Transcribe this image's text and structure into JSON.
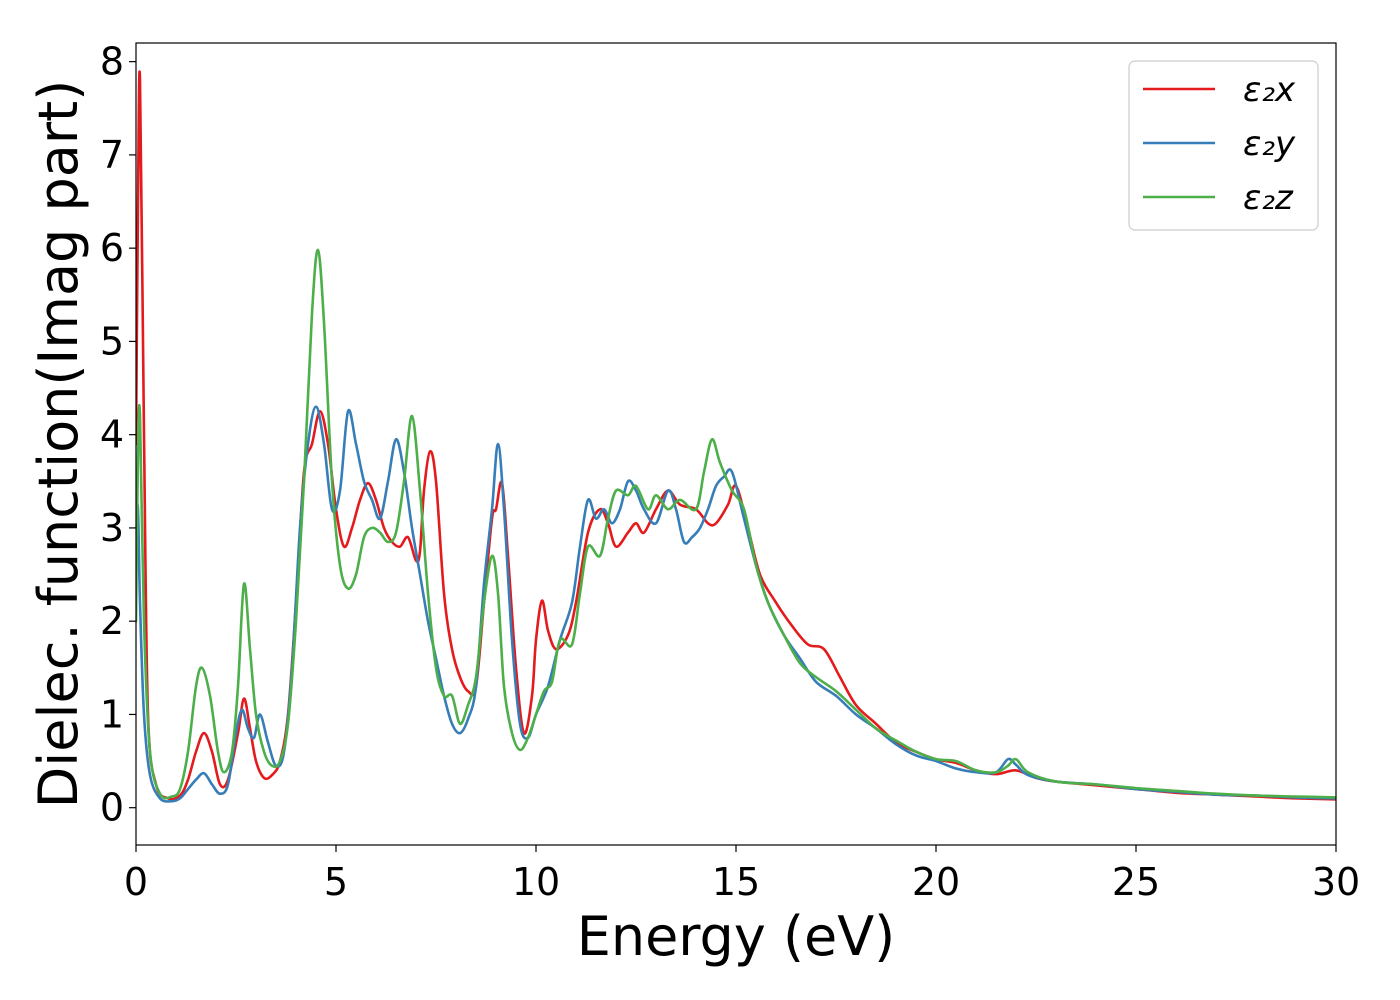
{
  "chart_data": {
    "type": "line",
    "xlabel": "Energy (eV)",
    "ylabel": "Dielec. function(Imag part)",
    "xlim": [
      0,
      30
    ],
    "ylim": [
      -0.4,
      8.2
    ],
    "xticks": [
      0,
      5,
      10,
      15,
      20,
      25,
      30
    ],
    "yticks": [
      0,
      1,
      2,
      3,
      4,
      5,
      6,
      7,
      8
    ],
    "grid": false,
    "legend_position": "top-right",
    "series": [
      {
        "name": "ε₂x",
        "color": "#e41a1c",
        "points": [
          [
            0.0,
            3.9
          ],
          [
            0.05,
            6.5
          ],
          [
            0.1,
            7.8
          ],
          [
            0.2,
            4.0
          ],
          [
            0.3,
            1.0
          ],
          [
            0.5,
            0.25
          ],
          [
            0.8,
            0.1
          ],
          [
            1.1,
            0.13
          ],
          [
            1.3,
            0.3
          ],
          [
            1.5,
            0.6
          ],
          [
            1.7,
            0.8
          ],
          [
            1.9,
            0.6
          ],
          [
            2.1,
            0.25
          ],
          [
            2.3,
            0.3
          ],
          [
            2.55,
            0.8
          ],
          [
            2.7,
            1.17
          ],
          [
            2.85,
            0.85
          ],
          [
            3.0,
            0.5
          ],
          [
            3.2,
            0.32
          ],
          [
            3.4,
            0.35
          ],
          [
            3.6,
            0.5
          ],
          [
            3.8,
            1.0
          ],
          [
            4.0,
            2.2
          ],
          [
            4.2,
            3.6
          ],
          [
            4.4,
            3.9
          ],
          [
            4.6,
            4.25
          ],
          [
            4.8,
            3.9
          ],
          [
            5.0,
            3.2
          ],
          [
            5.2,
            2.8
          ],
          [
            5.4,
            3.0
          ],
          [
            5.6,
            3.3
          ],
          [
            5.8,
            3.48
          ],
          [
            6.0,
            3.3
          ],
          [
            6.2,
            3.0
          ],
          [
            6.4,
            2.85
          ],
          [
            6.6,
            2.8
          ],
          [
            6.8,
            2.9
          ],
          [
            7.0,
            2.65
          ],
          [
            7.1,
            2.75
          ],
          [
            7.2,
            3.4
          ],
          [
            7.35,
            3.82
          ],
          [
            7.5,
            3.5
          ],
          [
            7.7,
            2.3
          ],
          [
            7.9,
            1.7
          ],
          [
            8.1,
            1.4
          ],
          [
            8.3,
            1.25
          ],
          [
            8.5,
            1.3
          ],
          [
            8.7,
            2.2
          ],
          [
            8.9,
            3.1
          ],
          [
            9.0,
            3.2
          ],
          [
            9.15,
            3.48
          ],
          [
            9.3,
            2.7
          ],
          [
            9.5,
            1.5
          ],
          [
            9.7,
            0.8
          ],
          [
            9.9,
            1.2
          ],
          [
            10.0,
            1.8
          ],
          [
            10.15,
            2.22
          ],
          [
            10.3,
            1.9
          ],
          [
            10.5,
            1.7
          ],
          [
            10.8,
            1.85
          ],
          [
            11.0,
            2.2
          ],
          [
            11.3,
            2.95
          ],
          [
            11.6,
            3.2
          ],
          [
            11.8,
            3.05
          ],
          [
            12.0,
            2.8
          ],
          [
            12.3,
            2.95
          ],
          [
            12.5,
            3.05
          ],
          [
            12.7,
            2.95
          ],
          [
            13.0,
            3.2
          ],
          [
            13.3,
            3.4
          ],
          [
            13.6,
            3.25
          ],
          [
            14.0,
            3.2
          ],
          [
            14.3,
            3.05
          ],
          [
            14.5,
            3.05
          ],
          [
            14.8,
            3.25
          ],
          [
            15.0,
            3.45
          ],
          [
            15.3,
            3.0
          ],
          [
            15.6,
            2.5
          ],
          [
            16.0,
            2.2
          ],
          [
            16.4,
            1.95
          ],
          [
            16.8,
            1.75
          ],
          [
            17.2,
            1.7
          ],
          [
            17.6,
            1.4
          ],
          [
            18.0,
            1.1
          ],
          [
            18.5,
            0.9
          ],
          [
            19.0,
            0.7
          ],
          [
            19.5,
            0.6
          ],
          [
            20.0,
            0.52
          ],
          [
            20.5,
            0.48
          ],
          [
            21.0,
            0.4
          ],
          [
            21.5,
            0.36
          ],
          [
            22.0,
            0.4
          ],
          [
            22.5,
            0.32
          ],
          [
            23.0,
            0.28
          ],
          [
            24.0,
            0.24
          ],
          [
            25.0,
            0.2
          ],
          [
            26.0,
            0.16
          ],
          [
            27.0,
            0.14
          ],
          [
            28.0,
            0.12
          ],
          [
            29.0,
            0.1
          ],
          [
            30.0,
            0.09
          ]
        ]
      },
      {
        "name": "ε₂y",
        "color": "#377eb8",
        "points": [
          [
            0.0,
            3.1
          ],
          [
            0.05,
            3.2
          ],
          [
            0.1,
            2.2
          ],
          [
            0.2,
            1.0
          ],
          [
            0.35,
            0.35
          ],
          [
            0.6,
            0.1
          ],
          [
            0.9,
            0.07
          ],
          [
            1.1,
            0.1
          ],
          [
            1.3,
            0.2
          ],
          [
            1.5,
            0.3
          ],
          [
            1.7,
            0.37
          ],
          [
            1.9,
            0.25
          ],
          [
            2.1,
            0.15
          ],
          [
            2.3,
            0.25
          ],
          [
            2.5,
            0.8
          ],
          [
            2.65,
            1.05
          ],
          [
            2.8,
            0.85
          ],
          [
            2.95,
            0.75
          ],
          [
            3.1,
            1.0
          ],
          [
            3.3,
            0.7
          ],
          [
            3.5,
            0.45
          ],
          [
            3.7,
            0.6
          ],
          [
            3.9,
            1.5
          ],
          [
            4.1,
            3.0
          ],
          [
            4.3,
            3.9
          ],
          [
            4.5,
            4.3
          ],
          [
            4.7,
            3.9
          ],
          [
            4.9,
            3.2
          ],
          [
            5.1,
            3.4
          ],
          [
            5.3,
            4.25
          ],
          [
            5.5,
            3.9
          ],
          [
            5.7,
            3.5
          ],
          [
            5.9,
            3.3
          ],
          [
            6.1,
            3.1
          ],
          [
            6.3,
            3.5
          ],
          [
            6.5,
            3.95
          ],
          [
            6.7,
            3.6
          ],
          [
            6.9,
            3.0
          ],
          [
            7.1,
            2.5
          ],
          [
            7.3,
            2.0
          ],
          [
            7.5,
            1.6
          ],
          [
            7.7,
            1.2
          ],
          [
            7.9,
            0.9
          ],
          [
            8.1,
            0.8
          ],
          [
            8.3,
            0.95
          ],
          [
            8.5,
            1.3
          ],
          [
            8.7,
            2.4
          ],
          [
            8.9,
            3.2
          ],
          [
            9.05,
            3.9
          ],
          [
            9.2,
            3.2
          ],
          [
            9.4,
            1.8
          ],
          [
            9.6,
            0.9
          ],
          [
            9.8,
            0.75
          ],
          [
            10.0,
            1.0
          ],
          [
            10.3,
            1.3
          ],
          [
            10.6,
            1.8
          ],
          [
            10.9,
            2.2
          ],
          [
            11.1,
            2.8
          ],
          [
            11.3,
            3.3
          ],
          [
            11.5,
            3.1
          ],
          [
            11.7,
            3.2
          ],
          [
            11.9,
            3.05
          ],
          [
            12.1,
            3.2
          ],
          [
            12.3,
            3.5
          ],
          [
            12.5,
            3.4
          ],
          [
            12.7,
            3.2
          ],
          [
            13.0,
            3.05
          ],
          [
            13.3,
            3.4
          ],
          [
            13.5,
            3.2
          ],
          [
            13.7,
            2.85
          ],
          [
            13.9,
            2.9
          ],
          [
            14.1,
            3.0
          ],
          [
            14.3,
            3.2
          ],
          [
            14.5,
            3.45
          ],
          [
            14.7,
            3.55
          ],
          [
            14.9,
            3.6
          ],
          [
            15.2,
            3.1
          ],
          [
            15.5,
            2.6
          ],
          [
            15.8,
            2.2
          ],
          [
            16.2,
            1.85
          ],
          [
            16.6,
            1.6
          ],
          [
            17.0,
            1.35
          ],
          [
            17.5,
            1.2
          ],
          [
            18.0,
            1.0
          ],
          [
            18.5,
            0.85
          ],
          [
            19.0,
            0.68
          ],
          [
            19.5,
            0.56
          ],
          [
            20.0,
            0.5
          ],
          [
            20.5,
            0.42
          ],
          [
            21.0,
            0.38
          ],
          [
            21.5,
            0.38
          ],
          [
            21.8,
            0.52
          ],
          [
            22.0,
            0.46
          ],
          [
            22.3,
            0.35
          ],
          [
            23.0,
            0.28
          ],
          [
            24.0,
            0.25
          ],
          [
            25.0,
            0.2
          ],
          [
            26.0,
            0.17
          ],
          [
            27.0,
            0.14
          ],
          [
            28.0,
            0.13
          ],
          [
            29.0,
            0.11
          ],
          [
            30.0,
            0.1
          ]
        ]
      },
      {
        "name": "ε₂z",
        "color": "#4daf4a",
        "points": [
          [
            0.0,
            2.0
          ],
          [
            0.05,
            3.8
          ],
          [
            0.1,
            4.2
          ],
          [
            0.2,
            2.0
          ],
          [
            0.35,
            0.6
          ],
          [
            0.6,
            0.15
          ],
          [
            0.9,
            0.12
          ],
          [
            1.1,
            0.2
          ],
          [
            1.3,
            0.6
          ],
          [
            1.5,
            1.3
          ],
          [
            1.65,
            1.5
          ],
          [
            1.85,
            1.2
          ],
          [
            2.05,
            0.6
          ],
          [
            2.2,
            0.38
          ],
          [
            2.4,
            0.6
          ],
          [
            2.55,
            1.3
          ],
          [
            2.7,
            2.4
          ],
          [
            2.85,
            1.7
          ],
          [
            3.0,
            1.0
          ],
          [
            3.2,
            0.6
          ],
          [
            3.4,
            0.45
          ],
          [
            3.6,
            0.5
          ],
          [
            3.8,
            0.9
          ],
          [
            4.0,
            2.0
          ],
          [
            4.2,
            3.5
          ],
          [
            4.4,
            5.3
          ],
          [
            4.55,
            5.98
          ],
          [
            4.7,
            5.2
          ],
          [
            4.9,
            3.5
          ],
          [
            5.1,
            2.6
          ],
          [
            5.3,
            2.35
          ],
          [
            5.5,
            2.5
          ],
          [
            5.7,
            2.9
          ],
          [
            5.9,
            3.0
          ],
          [
            6.1,
            2.95
          ],
          [
            6.3,
            2.85
          ],
          [
            6.5,
            2.95
          ],
          [
            6.7,
            3.5
          ],
          [
            6.9,
            4.2
          ],
          [
            7.1,
            3.4
          ],
          [
            7.3,
            2.3
          ],
          [
            7.5,
            1.5
          ],
          [
            7.7,
            1.2
          ],
          [
            7.9,
            1.2
          ],
          [
            8.1,
            0.9
          ],
          [
            8.3,
            1.1
          ],
          [
            8.5,
            1.4
          ],
          [
            8.7,
            2.2
          ],
          [
            8.9,
            2.7
          ],
          [
            9.05,
            2.3
          ],
          [
            9.2,
            1.3
          ],
          [
            9.4,
            0.8
          ],
          [
            9.6,
            0.62
          ],
          [
            9.8,
            0.75
          ],
          [
            10.0,
            1.0
          ],
          [
            10.2,
            1.25
          ],
          [
            10.4,
            1.35
          ],
          [
            10.6,
            1.8
          ],
          [
            10.9,
            1.75
          ],
          [
            11.1,
            2.3
          ],
          [
            11.3,
            2.8
          ],
          [
            11.6,
            2.7
          ],
          [
            11.8,
            3.1
          ],
          [
            12.0,
            3.4
          ],
          [
            12.3,
            3.35
          ],
          [
            12.5,
            3.45
          ],
          [
            12.8,
            3.2
          ],
          [
            13.0,
            3.35
          ],
          [
            13.3,
            3.2
          ],
          [
            13.6,
            3.3
          ],
          [
            14.0,
            3.2
          ],
          [
            14.2,
            3.6
          ],
          [
            14.4,
            3.95
          ],
          [
            14.6,
            3.7
          ],
          [
            14.9,
            3.4
          ],
          [
            15.2,
            3.2
          ],
          [
            15.5,
            2.6
          ],
          [
            15.8,
            2.2
          ],
          [
            16.2,
            1.85
          ],
          [
            16.6,
            1.55
          ],
          [
            17.0,
            1.4
          ],
          [
            17.5,
            1.25
          ],
          [
            18.0,
            1.05
          ],
          [
            18.5,
            0.85
          ],
          [
            19.0,
            0.72
          ],
          [
            19.5,
            0.6
          ],
          [
            20.0,
            0.52
          ],
          [
            20.5,
            0.5
          ],
          [
            21.0,
            0.4
          ],
          [
            21.5,
            0.38
          ],
          [
            21.8,
            0.45
          ],
          [
            22.0,
            0.52
          ],
          [
            22.3,
            0.38
          ],
          [
            23.0,
            0.28
          ],
          [
            24.0,
            0.25
          ],
          [
            25.0,
            0.21
          ],
          [
            26.0,
            0.18
          ],
          [
            27.0,
            0.15
          ],
          [
            28.0,
            0.13
          ],
          [
            29.0,
            0.12
          ],
          [
            30.0,
            0.11
          ]
        ]
      }
    ]
  }
}
